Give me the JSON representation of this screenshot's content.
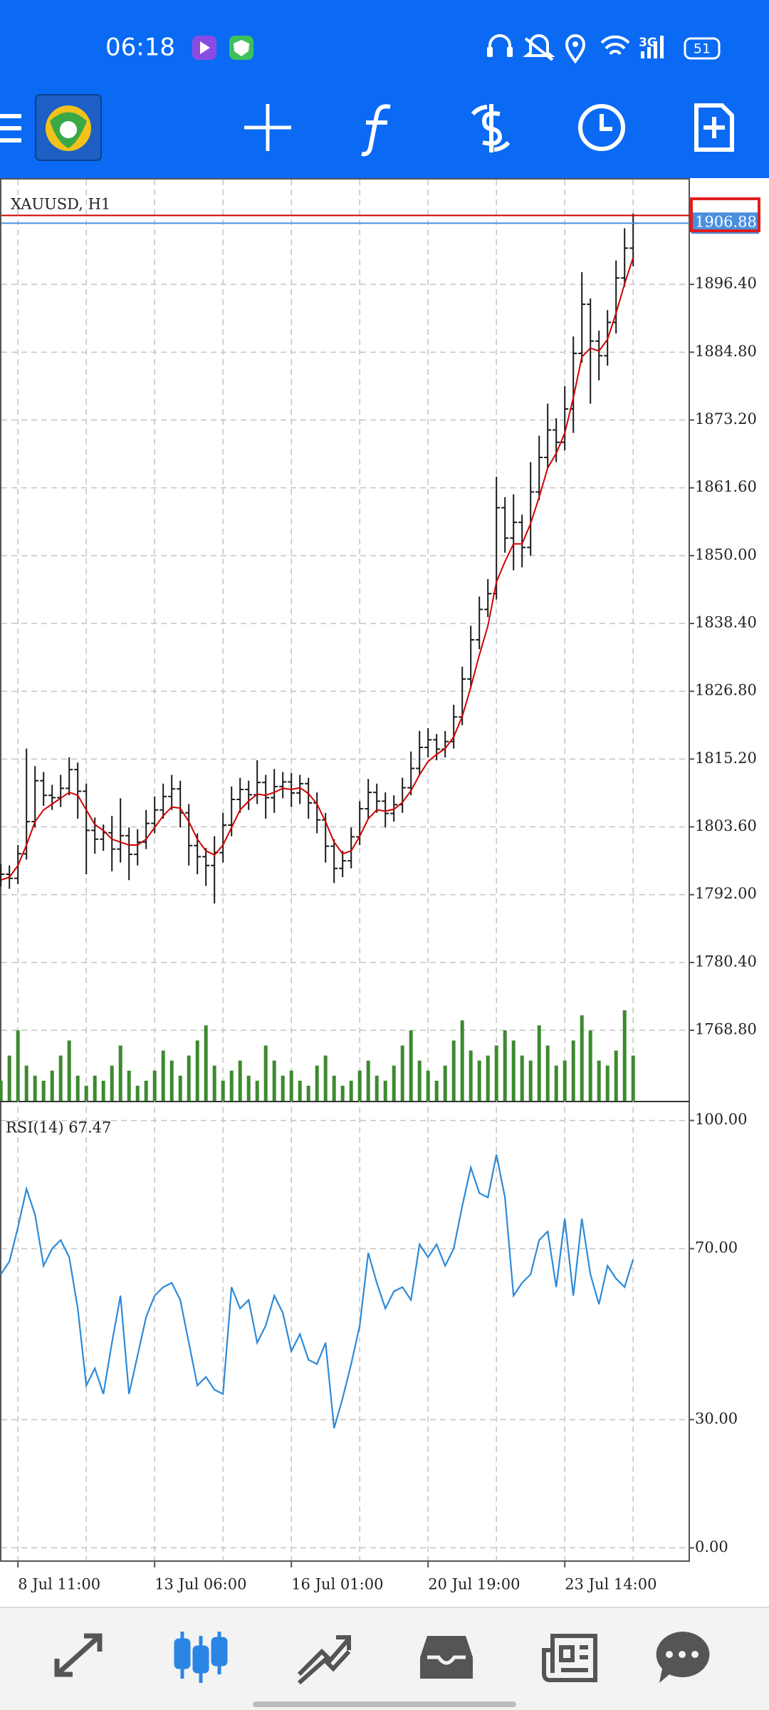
{
  "status_bar": {
    "time": "06:18",
    "network": "3G",
    "battery": "51"
  },
  "chart_data": [
    {
      "type": "ohlc",
      "title": "XAUUSD, H1",
      "color": "#1a1a1a",
      "open": [
        1796.0,
        1795.5,
        1794.8,
        1799.0,
        1804.5,
        1811.5,
        1809.0,
        1808.6,
        1810.2,
        1813.4,
        1809.7,
        1803.0,
        1801.5,
        1802.6,
        1799.8,
        1802.1,
        1798.9,
        1801.0,
        1804.2,
        1806.5,
        1808.8,
        1810.1,
        1806.0,
        1800.4,
        1798.5,
        1797.0,
        1799.2,
        1803.9,
        1808.3,
        1810.0,
        1809.1,
        1811.2,
        1808.6,
        1810.5,
        1811.3,
        1809.4,
        1811.0,
        1807.7,
        1804.8,
        1800.3,
        1796.5,
        1797.8,
        1801.9,
        1806.7,
        1809.5,
        1808.0,
        1805.9,
        1807.4,
        1810.3,
        1813.6,
        1817.2,
        1818.5,
        1816.9,
        1818.2,
        1822.4,
        1828.9,
        1835.6,
        1840.8,
        1843.5,
        1858.2,
        1853.0,
        1855.7,
        1851.4,
        1860.9,
        1866.8,
        1871.5,
        1869.4,
        1875.1,
        1884.6,
        1893.0,
        1886.7,
        1884.2,
        1889.9,
        1897.5,
        1902.6
      ],
      "high": [
        1797.2,
        1797.0,
        1800.5,
        1817.0,
        1814.0,
        1813.0,
        1810.8,
        1812.5,
        1815.5,
        1814.6,
        1811.0,
        1805.2,
        1804.0,
        1805.5,
        1808.5,
        1803.5,
        1803.2,
        1806.5,
        1808.8,
        1811.0,
        1812.5,
        1811.5,
        1807.5,
        1802.5,
        1800.0,
        1802.0,
        1806.0,
        1810.5,
        1812.0,
        1811.5,
        1815.0,
        1812.5,
        1813.5,
        1813.0,
        1812.8,
        1812.5,
        1812.0,
        1809.5,
        1806.0,
        1801.5,
        1799.5,
        1803.5,
        1808.0,
        1811.8,
        1811.0,
        1809.5,
        1809.0,
        1812.0,
        1816.5,
        1820.0,
        1820.5,
        1819.5,
        1820.0,
        1824.5,
        1831.0,
        1838.0,
        1843.0,
        1846.0,
        1863.5,
        1860.0,
        1860.5,
        1857.0,
        1866.0,
        1870.5,
        1876.0,
        1873.5,
        1879.0,
        1887.5,
        1898.5,
        1894.0,
        1888.5,
        1892.0,
        1900.5,
        1906.0,
        1908.5
      ],
      "low": [
        1793.4,
        1793.0,
        1793.8,
        1798.0,
        1803.5,
        1807.2,
        1806.5,
        1807.0,
        1809.0,
        1805.0,
        1795.5,
        1799.0,
        1799.5,
        1796.0,
        1797.5,
        1794.5,
        1797.0,
        1799.8,
        1802.5,
        1805.0,
        1806.5,
        1803.5,
        1797.0,
        1795.5,
        1793.5,
        1790.5,
        1797.5,
        1802.0,
        1806.0,
        1806.5,
        1807.5,
        1805.0,
        1806.0,
        1808.5,
        1807.0,
        1807.5,
        1805.0,
        1802.5,
        1797.5,
        1794.0,
        1795.0,
        1796.5,
        1800.5,
        1805.0,
        1806.0,
        1803.5,
        1804.5,
        1806.0,
        1809.0,
        1812.5,
        1815.5,
        1815.0,
        1815.5,
        1817.0,
        1821.0,
        1827.5,
        1834.0,
        1839.5,
        1842.5,
        1850.5,
        1847.5,
        1848.0,
        1850.0,
        1859.5,
        1865.0,
        1866.0,
        1868.0,
        1871.0,
        1883.0,
        1876.0,
        1880.0,
        1882.5,
        1888.0,
        1896.0,
        1899.5
      ],
      "close": [
        1795.5,
        1794.8,
        1799.0,
        1804.5,
        1811.5,
        1809.0,
        1808.6,
        1810.2,
        1813.4,
        1809.7,
        1803.0,
        1801.5,
        1802.6,
        1799.8,
        1802.1,
        1798.9,
        1801.0,
        1804.2,
        1806.5,
        1808.8,
        1810.1,
        1806.0,
        1800.4,
        1798.5,
        1797.0,
        1799.2,
        1803.9,
        1808.3,
        1810.0,
        1809.1,
        1811.2,
        1808.6,
        1810.5,
        1811.3,
        1809.4,
        1811.0,
        1807.7,
        1804.8,
        1800.3,
        1796.5,
        1797.8,
        1801.9,
        1806.7,
        1809.5,
        1808.0,
        1805.9,
        1807.4,
        1810.3,
        1813.6,
        1817.2,
        1818.5,
        1816.9,
        1818.2,
        1822.4,
        1828.9,
        1835.6,
        1840.8,
        1843.5,
        1858.2,
        1853.0,
        1855.7,
        1851.4,
        1860.9,
        1866.8,
        1871.5,
        1869.4,
        1875.1,
        1884.6,
        1893.0,
        1886.7,
        1884.2,
        1889.9,
        1897.5,
        1902.6,
        1906.88
      ],
      "moving_average": {
        "color": "#d00000",
        "values": [
          1794.5,
          1795.0,
          1797.0,
          1800.5,
          1804.5,
          1806.5,
          1807.5,
          1808.5,
          1809.5,
          1809.0,
          1806.5,
          1804.0,
          1803.0,
          1801.5,
          1801.0,
          1800.5,
          1800.5,
          1801.5,
          1803.5,
          1805.5,
          1807.0,
          1806.8,
          1804.5,
          1801.5,
          1799.5,
          1798.8,
          1800.5,
          1803.5,
          1806.5,
          1808.0,
          1809.2,
          1809.0,
          1809.5,
          1810.2,
          1810.0,
          1810.3,
          1809.3,
          1807.5,
          1804.5,
          1801.0,
          1799.0,
          1799.5,
          1802.0,
          1805.0,
          1806.5,
          1806.3,
          1806.6,
          1807.8,
          1809.8,
          1812.5,
          1814.8,
          1816.0,
          1817.0,
          1819.0,
          1822.5,
          1827.5,
          1833.0,
          1838.0,
          1845.5,
          1849.0,
          1852.0,
          1852.0,
          1855.5,
          1860.0,
          1865.0,
          1867.5,
          1871.0,
          1877.0,
          1884.0,
          1885.5,
          1885.0,
          1887.0,
          1891.5,
          1896.5,
          1901.0
        ]
      },
      "volume": {
        "color": "#3c8a2e",
        "values": [
          20,
          45,
          70,
          35,
          25,
          20,
          30,
          45,
          60,
          25,
          15,
          25,
          20,
          35,
          55,
          30,
          15,
          20,
          30,
          50,
          40,
          25,
          45,
          60,
          75,
          35,
          20,
          30,
          40,
          25,
          20,
          55,
          40,
          25,
          30,
          20,
          15,
          35,
          45,
          25,
          15,
          20,
          30,
          40,
          25,
          20,
          35,
          55,
          70,
          40,
          30,
          20,
          35,
          60,
          80,
          50,
          40,
          45,
          55,
          70,
          60,
          45,
          40,
          75,
          55,
          35,
          40,
          60,
          85,
          70,
          40,
          35,
          50,
          90,
          45
        ]
      },
      "bid": 1906.88,
      "bid_color": "#4a8fe0",
      "ask": 1908.2,
      "ask_color": "#d00000",
      "ylim": [
        1756.74,
        1914.46
      ],
      "yticks": [
        {
          "value": 1896.4,
          "label": "1896.40"
        },
        {
          "value": 1884.8,
          "label": "1884.80"
        },
        {
          "value": 1873.2,
          "label": "1873.20"
        },
        {
          "value": 1861.6,
          "label": "1861.60"
        },
        {
          "value": 1850.0,
          "label": "1850.00"
        },
        {
          "value": 1838.4,
          "label": "1838.40"
        },
        {
          "value": 1826.8,
          "label": "1826.80"
        },
        {
          "value": 1815.2,
          "label": "1815.20"
        },
        {
          "value": 1803.6,
          "label": "1803.60"
        },
        {
          "value": 1792.0,
          "label": "1792.00"
        },
        {
          "value": 1780.4,
          "label": "1780.40"
        },
        {
          "value": 1768.8,
          "label": "1768.80"
        }
      ],
      "grid": true
    },
    {
      "type": "line",
      "title": "RSI(14) 67.47",
      "color": "#2d8ad8",
      "categories": [
        null,
        null,
        "8 Jul 11:00",
        null,
        null,
        null,
        null,
        null,
        null,
        null,
        null,
        null,
        null,
        null,
        null,
        null,
        null,
        null,
        "13 Jul 06:00",
        null,
        null,
        null,
        null,
        null,
        null,
        null,
        null,
        null,
        null,
        null,
        null,
        null,
        null,
        null,
        "16 Jul 01:00",
        null,
        null,
        null,
        null,
        null,
        null,
        null,
        null,
        null,
        null,
        null,
        null,
        null,
        null,
        null,
        "20 Jul 19:00",
        null,
        null,
        null,
        null,
        null,
        null,
        null,
        null,
        null,
        null,
        null,
        null,
        null,
        null,
        null,
        "23 Jul 14:00",
        null,
        null,
        null,
        null,
        null,
        null,
        null,
        null
      ],
      "values": [
        64,
        67,
        75,
        84,
        78,
        66,
        70,
        72,
        68,
        56,
        38,
        42,
        36,
        48,
        59,
        36,
        45,
        54,
        59,
        61,
        62,
        58,
        48,
        38,
        40,
        37,
        36,
        61,
        56,
        58,
        48,
        52,
        59,
        55,
        46,
        50,
        44,
        43,
        48,
        28,
        35,
        43,
        52,
        69,
        62,
        56,
        60,
        61,
        58,
        71,
        68,
        71,
        66,
        70,
        80,
        89,
        83,
        82,
        92,
        82,
        59,
        62,
        64,
        72,
        74,
        61,
        77,
        59,
        77,
        64,
        57,
        66,
        63,
        61,
        67.47
      ],
      "ylim": [
        -3.1,
        104.1
      ],
      "yticks": [
        {
          "value": 100,
          "label": "100.00"
        },
        {
          "value": 70,
          "label": "70.00"
        },
        {
          "value": 30,
          "label": "30.00"
        },
        {
          "value": 0,
          "label": "0.00"
        }
      ],
      "grid": true
    }
  ]
}
